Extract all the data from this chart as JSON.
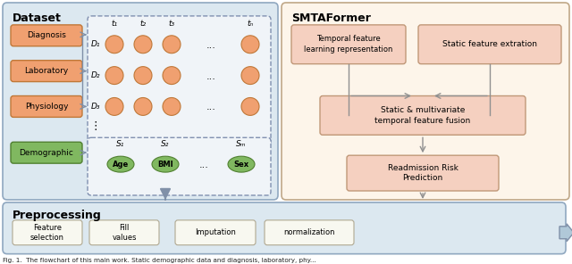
{
  "bg_color": "#ffffff",
  "left_panel_bg": "#dce8f0",
  "right_panel_bg": "#fdf5ea",
  "preproc_panel_bg": "#dce8f0",
  "orange_box_color": "#f0a070",
  "orange_box_edge": "#c07838",
  "green_box_color": "#80b860",
  "green_box_edge": "#508030",
  "pink_box_color": "#f5d0c0",
  "pink_box_edge": "#c09878",
  "preproc_box_color": "#f8f8f0",
  "preproc_box_edge": "#b0a890",
  "orange_circle_color": "#f0a070",
  "orange_circle_edge": "#c07838",
  "green_circle_color": "#80b860",
  "green_circle_edge": "#508030",
  "arrow_color": "#8090a8",
  "dashed_border_color": "#8090b0",
  "panel_edge_left": "#90a8c0",
  "panel_edge_right": "#c0a888",
  "title_left": "Dataset",
  "title_right": "SMTAFormer",
  "title_preproc": "Preprocessing",
  "left_boxes": [
    "Diagnosis",
    "Laboratory",
    "Physiology"
  ],
  "left_green_box": "Demographic",
  "matrix_rows": [
    "D₁",
    "D₂",
    "D₃"
  ],
  "matrix_cols": [
    "t₁",
    "t₂",
    "t₃",
    "tₙ"
  ],
  "demo_labels": [
    "S₁",
    "S₂",
    "Sₘ"
  ],
  "demo_circles": [
    "Age",
    "BMI",
    "Sex"
  ],
  "right_boxes": [
    "Temporal feature\nlearning representation",
    "Static feature extration",
    "Static & multivariate\ntemporal feature fusion",
    "Readmission Risk\nPrediction"
  ],
  "preproc_boxes": [
    "Feature\nselection",
    "Fill\nvalues",
    "Imputation",
    "normalization"
  ],
  "caption": "Fig. 1.  The flowchart of this main work. Static demographic data and diagnosis, laboratory, phy..."
}
